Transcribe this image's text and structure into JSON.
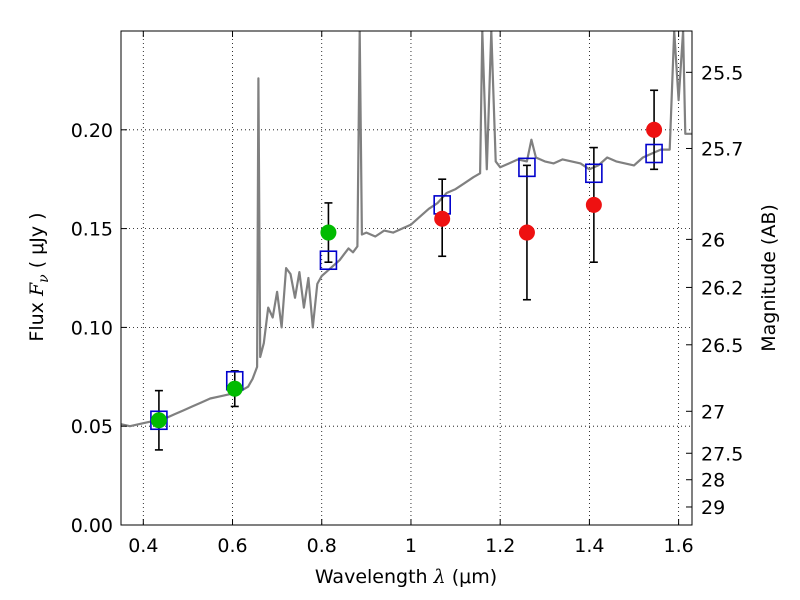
{
  "chart_data": {
    "type": "scatter",
    "xlabel": {
      "prefix": "Wavelength  ",
      "symbol": "λ",
      "unit": " (μm)"
    },
    "ylabel": {
      "prefix": "Flux  ",
      "symbol": "F",
      "subscript": "ν",
      "unit": "  ( μJy )"
    },
    "y2label": "Magnitude (AB)",
    "xlim": [
      0.35,
      1.63
    ],
    "ylim": [
      0.0,
      0.25
    ],
    "grid": true,
    "x_ticks": [
      {
        "value": 0.4,
        "label": "0.4"
      },
      {
        "value": 0.6,
        "label": "0.6"
      },
      {
        "value": 0.8,
        "label": "0.8"
      },
      {
        "value": 1.0,
        "label": "1"
      },
      {
        "value": 1.2,
        "label": "1.2"
      },
      {
        "value": 1.4,
        "label": "1.4"
      },
      {
        "value": 1.6,
        "label": "1.6"
      }
    ],
    "y_ticks": [
      {
        "value": 0.0,
        "label": "0.00"
      },
      {
        "value": 0.05,
        "label": "0.05"
      },
      {
        "value": 0.1,
        "label": "0.10"
      },
      {
        "value": 0.15,
        "label": "0.15"
      },
      {
        "value": 0.2,
        "label": "0.20"
      }
    ],
    "y2_ticks": [
      {
        "label": "25.5",
        "value": 25.5
      },
      {
        "label": "25.7",
        "value": 25.7
      },
      {
        "label": "26",
        "value": 26.0
      },
      {
        "label": "26.2",
        "value": 26.2
      },
      {
        "label": "26.5",
        "value": 26.5
      },
      {
        "label": "27",
        "value": 27.0
      },
      {
        "label": "27.5",
        "value": 27.5
      },
      {
        "label": "28",
        "value": 28.0
      },
      {
        "label": "29",
        "value": 29.0
      }
    ],
    "spectrum": {
      "color": "#808080",
      "points": [
        [
          0.35,
          0.051
        ],
        [
          0.37,
          0.05
        ],
        [
          0.39,
          0.051
        ],
        [
          0.41,
          0.052
        ],
        [
          0.43,
          0.053
        ],
        [
          0.45,
          0.054
        ],
        [
          0.47,
          0.056
        ],
        [
          0.49,
          0.058
        ],
        [
          0.51,
          0.06
        ],
        [
          0.53,
          0.062
        ],
        [
          0.55,
          0.064
        ],
        [
          0.57,
          0.065
        ],
        [
          0.59,
          0.066
        ],
        [
          0.61,
          0.067
        ],
        [
          0.62,
          0.068
        ],
        [
          0.635,
          0.07
        ],
        [
          0.645,
          0.074
        ],
        [
          0.655,
          0.08
        ],
        [
          0.658,
          0.226
        ],
        [
          0.662,
          0.085
        ],
        [
          0.67,
          0.092
        ],
        [
          0.68,
          0.11
        ],
        [
          0.69,
          0.105
        ],
        [
          0.7,
          0.118
        ],
        [
          0.71,
          0.1
        ],
        [
          0.72,
          0.13
        ],
        [
          0.73,
          0.127
        ],
        [
          0.74,
          0.115
        ],
        [
          0.75,
          0.128
        ],
        [
          0.76,
          0.11
        ],
        [
          0.77,
          0.125
        ],
        [
          0.78,
          0.1
        ],
        [
          0.79,
          0.122
        ],
        [
          0.8,
          0.126
        ],
        [
          0.81,
          0.128
        ],
        [
          0.825,
          0.131
        ],
        [
          0.84,
          0.134
        ],
        [
          0.85,
          0.137
        ],
        [
          0.86,
          0.14
        ],
        [
          0.87,
          0.138
        ],
        [
          0.88,
          0.141
        ],
        [
          0.885,
          0.25
        ],
        [
          0.89,
          0.147
        ],
        [
          0.9,
          0.148
        ],
        [
          0.92,
          0.146
        ],
        [
          0.94,
          0.149
        ],
        [
          0.96,
          0.148
        ],
        [
          0.98,
          0.15
        ],
        [
          1.0,
          0.152
        ],
        [
          1.02,
          0.156
        ],
        [
          1.04,
          0.16
        ],
        [
          1.06,
          0.163
        ],
        [
          1.08,
          0.168
        ],
        [
          1.1,
          0.17
        ],
        [
          1.12,
          0.173
        ],
        [
          1.14,
          0.176
        ],
        [
          1.155,
          0.178
        ],
        [
          1.16,
          0.25
        ],
        [
          1.17,
          0.18
        ],
        [
          1.18,
          0.25
        ],
        [
          1.19,
          0.184
        ],
        [
          1.2,
          0.181
        ],
        [
          1.22,
          0.183
        ],
        [
          1.24,
          0.185
        ],
        [
          1.26,
          0.184
        ],
        [
          1.27,
          0.195
        ],
        [
          1.28,
          0.186
        ],
        [
          1.3,
          0.184
        ],
        [
          1.32,
          0.183
        ],
        [
          1.34,
          0.185
        ],
        [
          1.36,
          0.184
        ],
        [
          1.38,
          0.183
        ],
        [
          1.4,
          0.18
        ],
        [
          1.42,
          0.182
        ],
        [
          1.44,
          0.186
        ],
        [
          1.46,
          0.184
        ],
        [
          1.48,
          0.183
        ],
        [
          1.5,
          0.182
        ],
        [
          1.52,
          0.186
        ],
        [
          1.54,
          0.188
        ],
        [
          1.56,
          0.19
        ],
        [
          1.58,
          0.19
        ],
        [
          1.59,
          0.25
        ],
        [
          1.6,
          0.215
        ],
        [
          1.61,
          0.25
        ],
        [
          1.615,
          0.198
        ],
        [
          1.63,
          0.198
        ]
      ]
    },
    "model_points": {
      "name": "",
      "marker": "open-square",
      "color": "#0000cc",
      "points": [
        {
          "x": 0.435,
          "y": 0.053
        },
        {
          "x": 0.605,
          "y": 0.073
        },
        {
          "x": 0.815,
          "y": 0.134
        },
        {
          "x": 1.07,
          "y": 0.162
        },
        {
          "x": 1.26,
          "y": 0.181
        },
        {
          "x": 1.41,
          "y": 0.178
        },
        {
          "x": 1.545,
          "y": 0.188
        }
      ]
    },
    "observed_points": [
      {
        "x": 0.435,
        "y": 0.053,
        "yerr_low": 0.038,
        "yerr_high": 0.068,
        "color": "#00bb00"
      },
      {
        "x": 0.605,
        "y": 0.069,
        "yerr_low": 0.06,
        "yerr_high": 0.078,
        "color": "#00bb00"
      },
      {
        "x": 0.815,
        "y": 0.148,
        "yerr_low": 0.133,
        "yerr_high": 0.163,
        "color": "#00bb00"
      },
      {
        "x": 1.07,
        "y": 0.155,
        "yerr_low": 0.136,
        "yerr_high": 0.175,
        "color": "#ee1111"
      },
      {
        "x": 1.26,
        "y": 0.148,
        "yerr_low": 0.114,
        "yerr_high": 0.182,
        "color": "#ee1111"
      },
      {
        "x": 1.41,
        "y": 0.162,
        "yerr_low": 0.133,
        "yerr_high": 0.191,
        "color": "#ee1111"
      },
      {
        "x": 1.545,
        "y": 0.2,
        "yerr_low": 0.18,
        "yerr_high": 0.22,
        "color": "#ee1111"
      }
    ]
  }
}
